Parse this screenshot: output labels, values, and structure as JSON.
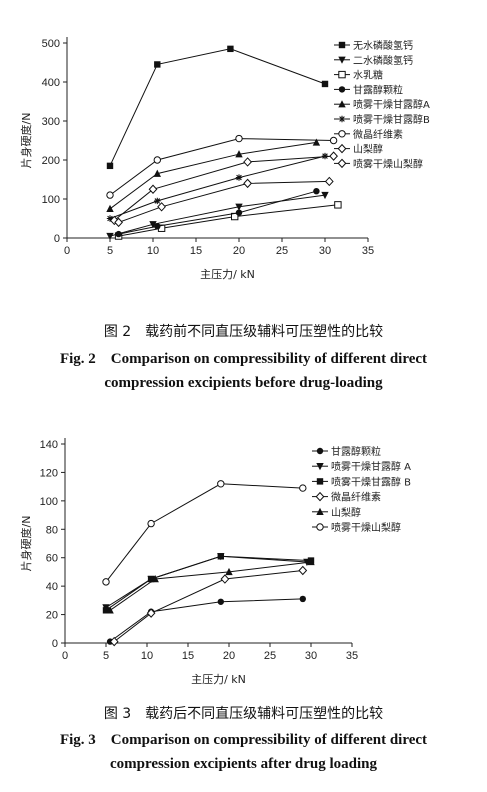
{
  "chart_data": [
    {
      "type": "line",
      "xlabel": "主压力/ kN",
      "ylabel": "片身硬度/N",
      "xlim": [
        0,
        35
      ],
      "ylim": [
        0,
        500
      ],
      "xticks": [
        "0",
        "5",
        "10",
        "15",
        "20",
        "25",
        "30",
        "35"
      ],
      "yticks": [
        "0",
        "100",
        "200",
        "300",
        "400",
        "500"
      ],
      "legend_placement": "top-right",
      "caption_cn": "图 2　载药前不同直压级辅料可压塑性的比较",
      "caption_en": [
        "Fig. 2　Comparison on compressibility of different direct",
        "compression excipients before drug-loading"
      ],
      "series": [
        {
          "name": "无水磷酸氢钙",
          "marker": "filled-square",
          "x": [
            5,
            10.5,
            19,
            30
          ],
          "y": [
            185,
            445,
            485,
            395
          ]
        },
        {
          "name": "二水磷酸氢钙",
          "marker": "filled-triangle-down",
          "x": [
            5,
            10,
            20,
            30
          ],
          "y": [
            5,
            35,
            80,
            110
          ]
        },
        {
          "name": "水乳糖",
          "marker": "open-square",
          "x": [
            6,
            11,
            19.5,
            31.5
          ],
          "y": [
            5,
            25,
            55,
            85
          ]
        },
        {
          "name": "甘露醇颗粒",
          "marker": "filled-circle",
          "x": [
            6,
            10.5,
            20,
            29
          ],
          "y": [
            10,
            30,
            65,
            120
          ]
        },
        {
          "name": "喷雾干燥甘露醇A",
          "marker": "filled-triangle",
          "x": [
            5,
            10.5,
            20,
            29
          ],
          "y": [
            75,
            165,
            215,
            245
          ]
        },
        {
          "name": "喷雾干燥甘露醇B",
          "marker": "star",
          "x": [
            5,
            10.5,
            20,
            30
          ],
          "y": [
            50,
            95,
            155,
            210
          ]
        },
        {
          "name": "微晶纤维素",
          "marker": "open-circle",
          "x": [
            5,
            10.5,
            20,
            31
          ],
          "y": [
            110,
            200,
            255,
            250
          ]
        },
        {
          "name": "山梨醇",
          "marker": "open-diamond",
          "x": [
            5.5,
            10,
            21,
            31
          ],
          "y": [
            45,
            125,
            195,
            210
          ]
        },
        {
          "name": "喷雾干燥山梨醇",
          "marker": "open-diamond",
          "x": [
            6,
            11,
            21,
            30.5
          ],
          "y": [
            40,
            80,
            140,
            145
          ]
        }
      ]
    },
    {
      "type": "line",
      "xlabel": "主压力/ kN",
      "ylabel": "片身硬度/N",
      "xlim": [
        0,
        35
      ],
      "ylim": [
        0,
        140
      ],
      "xticks": [
        "0",
        "5",
        "10",
        "15",
        "20",
        "25",
        "30",
        "35"
      ],
      "yticks": [
        "0",
        "20",
        "40",
        "60",
        "80",
        "100",
        "120",
        "140"
      ],
      "legend_placement": "top-right",
      "caption_cn": "图 3　载药后不同直压级辅料可压塑性的比较",
      "caption_en": [
        "Fig. 3　Comparison on compressibility of different direct",
        "compression excipients after drug loading"
      ],
      "series": [
        {
          "name": "甘露醇颗粒",
          "marker": "filled-circle",
          "x": [
            5.5,
            10.5,
            19,
            29
          ],
          "y": [
            1,
            22,
            29,
            31
          ]
        },
        {
          "name": "喷雾干燥甘露醇 A",
          "marker": "filled-triangle-down",
          "x": [
            5,
            10.5,
            19,
            29.5
          ],
          "y": [
            25,
            45,
            61,
            57
          ]
        },
        {
          "name": "喷雾干燥甘露醇 B",
          "marker": "filled-square",
          "x": [
            5,
            10.5,
            19,
            30
          ],
          "y": [
            23,
            45,
            61,
            58
          ]
        },
        {
          "name": "微晶纤维素",
          "marker": "open-diamond",
          "x": [
            6,
            10.5,
            19.5,
            29
          ],
          "y": [
            1,
            21,
            45,
            51
          ]
        },
        {
          "name": "山梨醇",
          "marker": "filled-triangle",
          "x": [
            5.5,
            11,
            20,
            30
          ],
          "y": [
            23,
            45,
            50,
            57
          ]
        },
        {
          "name": "喷雾干燥山梨醇",
          "marker": "open-circle",
          "x": [
            5,
            10.5,
            19,
            29
          ],
          "y": [
            43,
            84,
            112,
            109
          ]
        }
      ]
    }
  ]
}
